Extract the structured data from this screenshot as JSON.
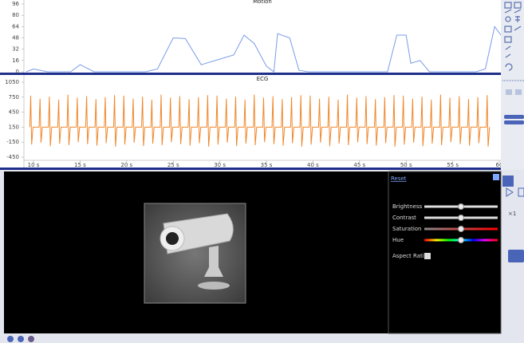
{
  "chart_data": [
    {
      "type": "line",
      "title": "Motion",
      "color": "#7a9be8",
      "x": [
        9.2,
        10,
        11.5,
        14,
        15,
        16.5,
        22,
        23.3,
        25,
        26.3,
        28,
        30,
        31.5,
        32.6,
        33.7,
        35,
        35.8,
        36.2,
        37.5,
        38.5,
        39.5,
        48,
        49,
        50,
        50.5,
        51.5,
        52.5,
        57.5,
        58.5,
        59.5,
        60.17
      ],
      "values": [
        0,
        4,
        0,
        0,
        10,
        0,
        0,
        4,
        48,
        47,
        10,
        18,
        24,
        52,
        40,
        8,
        0,
        54,
        48,
        2,
        0,
        0,
        52,
        52,
        12,
        16,
        0,
        0,
        4,
        64,
        52
      ],
      "xlim": [
        8.97,
        60.17
      ],
      "ylim": [
        0,
        96
      ],
      "yticks": [
        0,
        16,
        32,
        48,
        64,
        80,
        96
      ]
    },
    {
      "type": "line",
      "title": "ECG",
      "color": "#f0872a",
      "x": [
        9.6,
        9.7,
        9.8,
        9.95,
        10.6,
        10.7,
        10.8,
        10.95,
        11.6,
        11.7,
        11.8,
        11.95,
        12.6,
        12.7,
        12.8,
        12.95,
        13.6,
        13.7,
        13.8,
        13.95,
        14.6,
        14.7,
        14.8,
        14.95,
        15.6,
        15.7,
        15.8,
        15.95,
        16.6,
        16.7,
        16.8,
        16.95,
        17.6,
        17.7,
        17.8,
        17.95,
        18.6,
        18.7,
        18.8,
        18.95,
        19.6,
        19.7,
        19.8,
        19.95,
        20.6,
        20.7,
        20.8,
        20.95,
        21.6,
        21.7,
        21.8,
        21.95,
        22.6,
        22.7,
        22.8,
        22.95,
        23.6,
        23.7,
        23.8,
        23.95,
        24.6,
        24.7,
        24.8,
        24.95,
        25.6,
        25.7,
        25.8,
        25.95,
        26.6,
        26.7,
        26.8,
        26.95,
        27.6,
        27.7,
        27.8,
        27.95,
        28.6,
        28.7,
        28.8,
        28.95,
        29.6,
        29.7,
        29.8,
        29.95,
        30.6,
        30.7,
        30.8,
        30.95,
        31.6,
        31.7,
        31.8,
        31.95,
        32.6,
        32.7,
        32.8,
        32.95,
        33.6,
        33.7,
        33.8,
        33.95,
        34.6,
        34.7,
        34.8,
        34.95,
        35.6,
        35.7,
        35.8,
        35.95,
        36.6,
        36.7,
        36.8,
        36.95,
        37.6,
        37.7,
        37.8,
        37.95,
        38.6,
        38.7,
        38.8,
        38.95,
        39.6,
        39.7,
        39.8,
        39.95,
        40.6,
        40.7,
        40.8,
        40.95,
        41.6,
        41.7,
        41.8,
        41.95,
        42.6,
        42.7,
        42.8,
        42.95,
        43.6,
        43.7,
        43.8,
        43.95,
        44.6,
        44.7,
        44.8,
        44.95,
        45.6,
        45.7,
        45.8,
        45.95,
        46.6,
        46.7,
        46.8,
        46.95,
        47.6,
        47.7,
        47.8,
        47.95,
        48.6,
        48.7,
        48.8,
        48.95,
        49.6,
        49.7,
        49.8,
        49.95,
        50.6,
        50.7,
        50.8,
        50.95,
        51.6,
        51.7,
        51.8,
        51.95,
        52.6,
        52.7,
        52.8,
        52.95,
        53.6,
        53.7,
        53.8,
        53.95,
        54.6,
        54.7,
        54.8,
        54.95,
        55.6,
        55.7,
        55.8,
        55.95,
        56.6,
        56.7,
        56.8,
        56.95,
        57.6,
        57.7,
        57.8,
        57.95,
        58.6,
        58.7,
        58.8,
        58.95
      ],
      "values": [
        150,
        780,
        -200,
        150,
        150,
        720,
        -160,
        150,
        150,
        760,
        -230,
        150,
        150,
        700,
        -180,
        150,
        150,
        800,
        -210,
        150,
        150,
        740,
        -150,
        150,
        150,
        770,
        -190,
        150,
        150,
        710,
        -220,
        150,
        150,
        750,
        -170,
        150,
        150,
        790,
        -240,
        150,
        150,
        780,
        -200,
        150,
        150,
        720,
        -160,
        150,
        150,
        760,
        -230,
        150,
        150,
        700,
        -180,
        150,
        150,
        800,
        -210,
        150,
        150,
        740,
        -150,
        150,
        150,
        770,
        -190,
        150,
        150,
        710,
        -220,
        150,
        150,
        750,
        -170,
        150,
        150,
        790,
        -240,
        150,
        150,
        780,
        -200,
        150,
        150,
        720,
        -160,
        150,
        150,
        760,
        -230,
        150,
        150,
        700,
        -180,
        150,
        150,
        800,
        -210,
        150,
        150,
        740,
        -150,
        150,
        150,
        770,
        -190,
        150,
        150,
        710,
        -220,
        150,
        150,
        750,
        -170,
        150,
        150,
        790,
        -240,
        150,
        150,
        780,
        -200,
        150,
        150,
        720,
        -160,
        150,
        150,
        760,
        -230,
        150,
        150,
        700,
        -180,
        150,
        150,
        800,
        -210,
        150,
        150,
        740,
        -150,
        150,
        150,
        770,
        -190,
        150,
        150,
        710,
        -220,
        150,
        150,
        750,
        -170,
        150,
        150,
        790,
        -240,
        150,
        150,
        780,
        -200,
        150,
        150,
        720,
        -160,
        150,
        150,
        760,
        -230,
        150,
        150,
        700,
        -180,
        150,
        150,
        800,
        -210,
        150,
        150,
        740,
        -150,
        150,
        150,
        770,
        -190,
        150,
        150,
        710,
        -220,
        150,
        150,
        750,
        -170,
        150,
        150,
        790,
        -240,
        150
      ],
      "xlim": [
        8.97,
        60.17
      ],
      "ylim": [
        -450,
        1050
      ],
      "yticks": [
        -450,
        -150,
        150,
        450,
        750,
        1050
      ],
      "xticks": [
        {
          "value": 10,
          "label": "10 s"
        },
        {
          "value": 15,
          "label": "15 s"
        },
        {
          "value": 20,
          "label": "20 s"
        },
        {
          "value": 25,
          "label": "25 s"
        },
        {
          "value": 30,
          "label": "30 s"
        },
        {
          "value": 35,
          "label": "35 s"
        },
        {
          "value": 40,
          "label": "40 s"
        },
        {
          "value": 45,
          "label": "45 s"
        },
        {
          "value": 50,
          "label": "50 s"
        },
        {
          "value": 55,
          "label": "55 s"
        },
        {
          "value": 60,
          "label": "60"
        }
      ]
    }
  ],
  "video_panel": {
    "reset": "Reset",
    "sliders": [
      {
        "label": "Brightness",
        "value": 50
      },
      {
        "label": "Contrast",
        "value": 50
      },
      {
        "label": "Saturation",
        "value": 50
      },
      {
        "label": "Hue",
        "value": 50
      }
    ],
    "aspect_ratio": "Aspect Ratio"
  },
  "side_panel": {
    "zoom": "×1"
  }
}
